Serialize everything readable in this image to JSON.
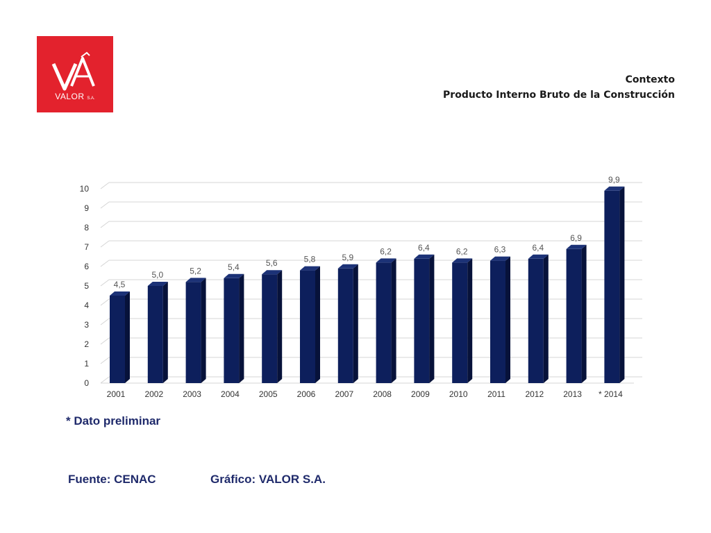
{
  "logo": {
    "name": "VALOR",
    "suffix": "S.A."
  },
  "header": {
    "line1": "Contexto",
    "line2": "Producto Interno Bruto de la Construcción"
  },
  "note": "*  Dato preliminar",
  "footer": {
    "source": "Fuente: CENAC",
    "credit": "Gráfico: VALOR S.A."
  },
  "colors": {
    "bar": "#0d1f5c",
    "bar_side": "#07123a",
    "bar_top": "#1c3277",
    "logo_bg": "#e3222d",
    "text_blue": "#1f2a6b"
  },
  "chart_data": {
    "type": "bar",
    "categories": [
      "2001",
      "2002",
      "2003",
      "2004",
      "2005",
      "2006",
      "2007",
      "2008",
      "2009",
      "2010",
      "2011",
      "2012",
      "2013",
      "* 2014"
    ],
    "values": [
      4.5,
      5.0,
      5.2,
      5.4,
      5.6,
      5.8,
      5.9,
      6.2,
      6.4,
      6.2,
      6.3,
      6.4,
      6.9,
      9.9
    ],
    "value_labels": [
      "4,5",
      "5,0",
      "5,2",
      "5,4",
      "5,6",
      "5,8",
      "5,9",
      "6,2",
      "6,4",
      "6,2",
      "6,3",
      "6,4",
      "6,9",
      "9,9"
    ],
    "yticks": [
      "0",
      "1",
      "2",
      "3",
      "4",
      "5",
      "6",
      "7",
      "8",
      "9",
      "10"
    ],
    "ylim": [
      0,
      10
    ],
    "grid": true,
    "legend": "none"
  }
}
